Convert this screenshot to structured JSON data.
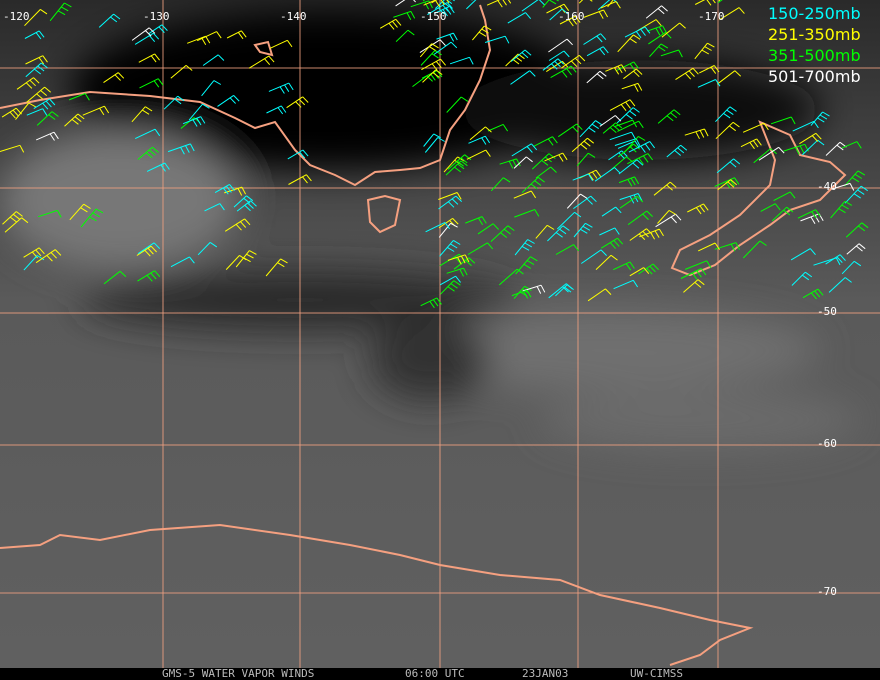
{
  "map": {
    "longitude_labels": [
      "-120",
      "-130",
      "-140",
      "-150",
      "-160",
      "-170"
    ],
    "latitude_labels": [
      "-40",
      "-50",
      "-60",
      "-70"
    ],
    "legend": [
      {
        "label": "150-250mb",
        "color": "#00ffff"
      },
      {
        "label": "251-350mb",
        "color": "#ffff00"
      },
      {
        "label": "351-500mb",
        "color": "#00ff00"
      },
      {
        "label": "501-700mb",
        "color": "#ffffff"
      }
    ],
    "footer": {
      "satellite": "GMS-5 WATER VAPOR WINDS",
      "time": "06:00 UTC",
      "date": "23JAN03",
      "source": "UW-CIMSS"
    }
  }
}
